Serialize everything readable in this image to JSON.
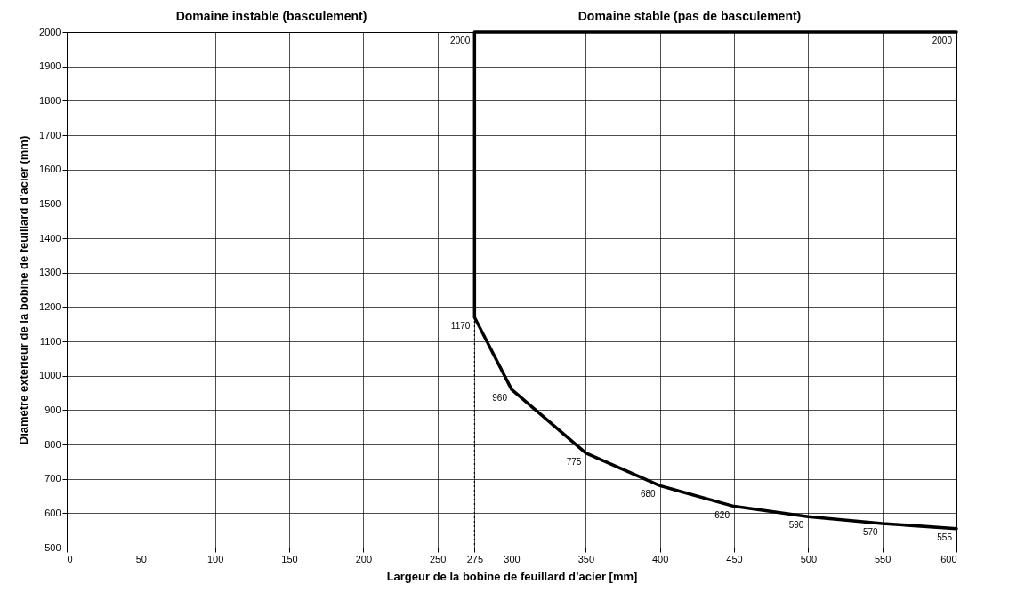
{
  "chart_data": {
    "type": "line",
    "xlabel": "Largeur de la bobine de feuillard d’acier   [mm]",
    "ylabel": "Diamètre extérieur de la   bobine de feuillard  d’acier (mm)",
    "annotations": [
      "Domaine instable (basculement)",
      "Domaine stable (pas de basculement)"
    ],
    "series": [
      {
        "color": "#000000",
        "x": [
          600,
          275,
          275,
          300,
          350,
          400,
          450,
          500,
          550,
          600
        ],
        "values": [
          2000,
          2000,
          1170,
          960,
          775,
          680,
          620,
          590,
          570,
          555
        ]
      }
    ],
    "data_labels": true,
    "xlim": [
      0,
      600
    ],
    "ylim": [
      500,
      2000
    ],
    "xticks": [
      0,
      50,
      100,
      150,
      200,
      250,
      275,
      300,
      350,
      400,
      450,
      500,
      550,
      600
    ],
    "yticks": [
      500,
      600,
      700,
      800,
      900,
      1000,
      1100,
      1200,
      1300,
      1400,
      1500,
      1600,
      1700,
      1800,
      1900,
      2000
    ],
    "ref_lines": [
      {
        "axis": "x",
        "value": 275,
        "color": "#000000",
        "line_style": "dotted"
      }
    ],
    "grid": true,
    "marker": "none",
    "line_style": "solid"
  }
}
